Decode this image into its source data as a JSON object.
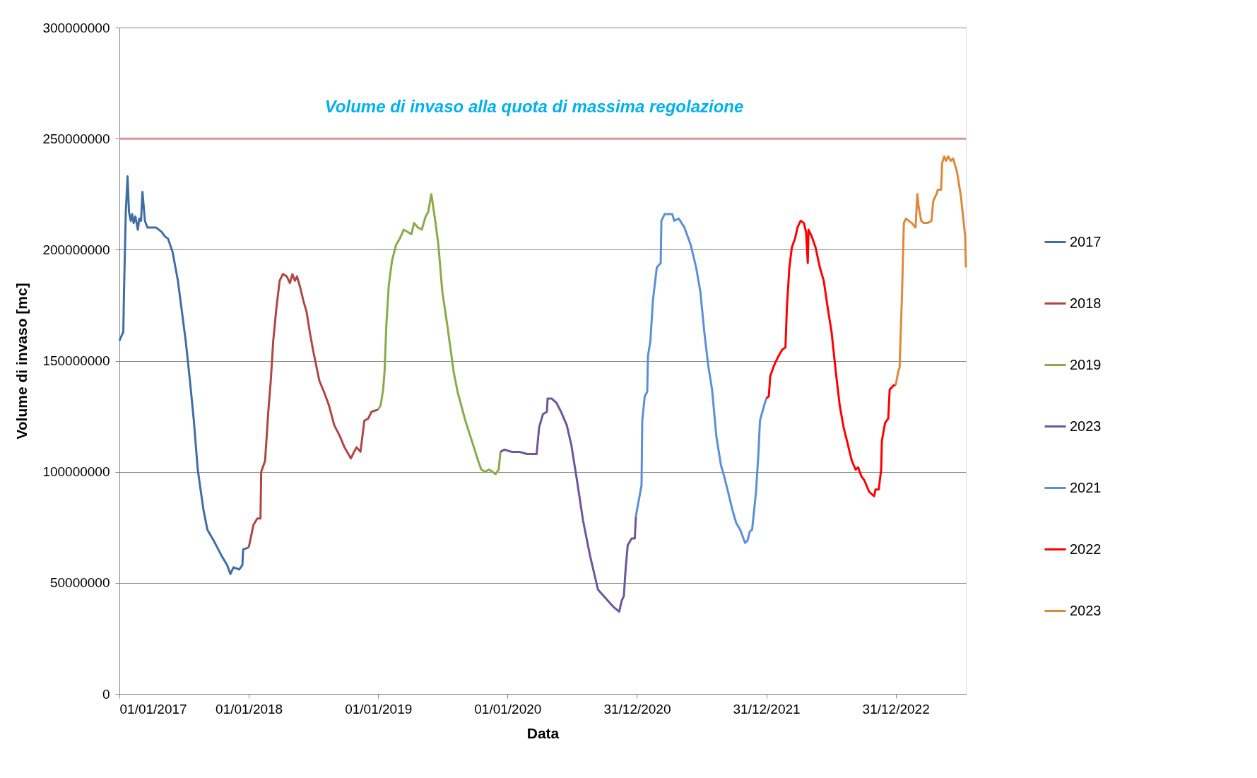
{
  "chart_data": {
    "type": "line",
    "xlabel": "Data",
    "ylabel": "Volume di invaso [mc]",
    "xlim": [
      "2017-01-01",
      "2023-07-17"
    ],
    "xticks": [
      {
        "value": "2017-01-01",
        "label": "01/01/2017"
      },
      {
        "value": "2018-01-01",
        "label": "01/01/2018"
      },
      {
        "value": "2019-01-01",
        "label": "01/01/2019"
      },
      {
        "value": "2020-01-01",
        "label": "01/01/2020"
      },
      {
        "value": "2020-12-31",
        "label": "31/12/2020"
      },
      {
        "value": "2021-12-31",
        "label": "31/12/2021"
      },
      {
        "value": "2022-12-31",
        "label": "31/12/2022"
      }
    ],
    "ylim": [
      0,
      300000000
    ],
    "yticks": [
      0,
      50000000,
      100000000,
      150000000,
      200000000,
      250000000,
      300000000
    ],
    "grid": "y",
    "legend": "right",
    "marker": "none",
    "line_style": "solid",
    "ref_lines": [
      {
        "axis": "y",
        "value": 250000000,
        "label": "Volume di invaso alla quota di massima regolazione",
        "color": "#d99694"
      }
    ],
    "series": [
      {
        "name": "2017",
        "color": "#3f6ea6",
        "x": [
          "2017-01-01",
          "2017-01-12",
          "2017-01-14",
          "2017-01-19",
          "2017-01-24",
          "2017-01-28",
          "2017-02-02",
          "2017-02-06",
          "2017-02-10",
          "2017-02-15",
          "2017-02-22",
          "2017-02-26",
          "2017-03-03",
          "2017-03-07",
          "2017-03-14",
          "2017-03-21",
          "2017-04-01",
          "2017-04-14",
          "2017-04-30",
          "2017-05-09",
          "2017-05-18",
          "2017-05-31",
          "2017-06-15",
          "2017-07-07",
          "2017-07-19",
          "2017-07-30",
          "2017-08-10",
          "2017-08-26",
          "2017-09-06",
          "2017-09-24",
          "2017-10-17",
          "2017-11-01",
          "2017-11-10",
          "2017-11-19",
          "2017-12-05",
          "2017-12-14",
          "2017-12-16",
          "2018-01-01"
        ],
        "values": [
          159000000,
          163000000,
          181000000,
          217000000,
          233000000,
          217000000,
          213000000,
          216000000,
          212000000,
          215000000,
          209000000,
          214000000,
          213000000,
          226000000,
          213000000,
          210000000,
          210000000,
          210000000,
          208000000,
          206000000,
          205000000,
          199000000,
          186000000,
          159000000,
          141000000,
          123000000,
          101000000,
          83000000,
          74000000,
          69000000,
          62000000,
          58000000,
          54000000,
          57000000,
          56000000,
          58000000,
          65000000,
          66000000
        ]
      },
      {
        "name": "2018",
        "color": "#b04643",
        "x": [
          "2018-01-01",
          "2018-01-14",
          "2018-01-25",
          "2018-02-03",
          "2018-02-05",
          "2018-02-16",
          "2018-02-25",
          "2018-03-04",
          "2018-03-11",
          "2018-03-20",
          "2018-03-29",
          "2018-04-07",
          "2018-04-18",
          "2018-04-27",
          "2018-05-04",
          "2018-05-11",
          "2018-05-17",
          "2018-05-26",
          "2018-06-04",
          "2018-06-13",
          "2018-06-22",
          "2018-07-01",
          "2018-07-10",
          "2018-07-19",
          "2018-08-01",
          "2018-08-15",
          "2018-08-30",
          "2018-09-15",
          "2018-09-28",
          "2018-10-16",
          "2018-10-25",
          "2018-11-01",
          "2018-11-12",
          "2018-11-16",
          "2018-11-23",
          "2018-12-04",
          "2018-12-13",
          "2019-01-01"
        ],
        "values": [
          66000000,
          76000000,
          79000000,
          79000000,
          100000000,
          105000000,
          127000000,
          141000000,
          159000000,
          174000000,
          186000000,
          189000000,
          188000000,
          185000000,
          189000000,
          186000000,
          188000000,
          183000000,
          177000000,
          172000000,
          163000000,
          155000000,
          148000000,
          141000000,
          136000000,
          130000000,
          121000000,
          116000000,
          111000000,
          106000000,
          109000000,
          111000000,
          109000000,
          114000000,
          123000000,
          124000000,
          127000000,
          128000000
        ]
      },
      {
        "name": "2019",
        "color": "#8aaa4a",
        "x": [
          "2019-01-01",
          "2019-01-08",
          "2019-01-15",
          "2019-01-19",
          "2019-01-24",
          "2019-01-31",
          "2019-02-09",
          "2019-02-20",
          "2019-03-03",
          "2019-03-14",
          "2019-03-25",
          "2019-04-05",
          "2019-04-12",
          "2019-04-23",
          "2019-05-04",
          "2019-05-15",
          "2019-05-22",
          "2019-05-31",
          "2019-06-11",
          "2019-06-20",
          "2019-07-01",
          "2019-07-15",
          "2019-08-02",
          "2019-08-13",
          "2019-09-04",
          "2019-09-22",
          "2019-10-10",
          "2019-10-19",
          "2019-10-30",
          "2019-11-10",
          "2019-11-28",
          "2019-12-07",
          "2019-12-12"
        ],
        "values": [
          128000000,
          130000000,
          137000000,
          145000000,
          166000000,
          184000000,
          195000000,
          202000000,
          205000000,
          209000000,
          208000000,
          207000000,
          212000000,
          210000000,
          209000000,
          215000000,
          217000000,
          225000000,
          213000000,
          202000000,
          181000000,
          166000000,
          145000000,
          136000000,
          123000000,
          114000000,
          105000000,
          101000000,
          100000000,
          101000000,
          99000000,
          101000000,
          109000000
        ]
      },
      {
        "name": "2023",
        "color": "#6f559a",
        "x": [
          "2019-12-12",
          "2019-12-23",
          "2020-01-12",
          "2020-02-03",
          "2020-02-25",
          "2020-03-23",
          "2020-03-30",
          "2020-04-10",
          "2020-04-21",
          "2020-04-23",
          "2020-05-04",
          "2020-05-18",
          "2020-05-31",
          "2020-06-16",
          "2020-06-29",
          "2020-07-15",
          "2020-08-01",
          "2020-08-21",
          "2020-09-12",
          "2020-10-04",
          "2020-10-27",
          "2020-11-11",
          "2020-11-18",
          "2020-11-24",
          "2020-11-29",
          "2020-12-05",
          "2020-12-16",
          "2020-12-25",
          "2020-12-28"
        ],
        "values": [
          109000000,
          110000000,
          109000000,
          109000000,
          108000000,
          108000000,
          120000000,
          126000000,
          127000000,
          133000000,
          133000000,
          131000000,
          127000000,
          121000000,
          112000000,
          96000000,
          78000000,
          62000000,
          47000000,
          43000000,
          39000000,
          37000000,
          42000000,
          44000000,
          56000000,
          67000000,
          70000000,
          70000000,
          80000000
        ]
      },
      {
        "name": "2021",
        "color": "#5b8fd6",
        "x": [
          "2020-12-28",
          "2021-01-13",
          "2021-01-15",
          "2021-01-22",
          "2021-01-29",
          "2021-01-31",
          "2021-02-07",
          "2021-02-14",
          "2021-02-25",
          "2021-03-08",
          "2021-03-10",
          "2021-03-19",
          "2021-04-10",
          "2021-04-15",
          "2021-04-28",
          "2021-05-14",
          "2021-06-01",
          "2021-06-16",
          "2021-06-28",
          "2021-07-09",
          "2021-07-20",
          "2021-07-31",
          "2021-08-12",
          "2021-08-18",
          "2021-08-25",
          "2021-09-03",
          "2021-09-14",
          "2021-09-26",
          "2021-10-07",
          "2021-10-18",
          "2021-11-01",
          "2021-11-08",
          "2021-11-14",
          "2021-11-21",
          "2021-12-02",
          "2021-12-09",
          "2021-12-13",
          "2021-12-25",
          "2021-12-31"
        ],
        "values": [
          80000000,
          94000000,
          123000000,
          134000000,
          136000000,
          152000000,
          159000000,
          177000000,
          192000000,
          194000000,
          213000000,
          216000000,
          216000000,
          213000000,
          214000000,
          210000000,
          202000000,
          192000000,
          181000000,
          163000000,
          148000000,
          137000000,
          116000000,
          110000000,
          103000000,
          98000000,
          91000000,
          83000000,
          77000000,
          74000000,
          68000000,
          69000000,
          73000000,
          74000000,
          91000000,
          109000000,
          123000000,
          130000000,
          133000000
        ]
      },
      {
        "name": "2022",
        "color": "#ff0000",
        "x": [
          "2021-12-31",
          "2022-01-07",
          "2022-01-11",
          "2022-01-22",
          "2022-02-03",
          "2022-02-14",
          "2022-02-23",
          "2022-02-27",
          "2022-03-06",
          "2022-03-13",
          "2022-03-22",
          "2022-03-29",
          "2022-04-07",
          "2022-04-16",
          "2022-04-22",
          "2022-04-27",
          "2022-04-29",
          "2022-05-08",
          "2022-05-19",
          "2022-05-31",
          "2022-06-11",
          "2022-06-22",
          "2022-07-03",
          "2022-07-15",
          "2022-07-26",
          "2022-08-06",
          "2022-08-17",
          "2022-08-29",
          "2022-09-09",
          "2022-09-16",
          "2022-09-25",
          "2022-10-04",
          "2022-10-17",
          "2022-10-31",
          "2022-11-04",
          "2022-11-13",
          "2022-11-20",
          "2022-11-22",
          "2022-12-01",
          "2022-12-10",
          "2022-12-14",
          "2022-12-26",
          "2022-12-31"
        ],
        "values": [
          133000000,
          134000000,
          143000000,
          148000000,
          152000000,
          155000000,
          156000000,
          174000000,
          192000000,
          201000000,
          205000000,
          210000000,
          213000000,
          212000000,
          208000000,
          194000000,
          209000000,
          206000000,
          201000000,
          192000000,
          186000000,
          174000000,
          163000000,
          145000000,
          130000000,
          120000000,
          113000000,
          105000000,
          101000000,
          102000000,
          98000000,
          96000000,
          91000000,
          89000000,
          92000000,
          92000000,
          101000000,
          114000000,
          122000000,
          124000000,
          137000000,
          139000000,
          139000000
        ]
      },
      {
        "name": "2023",
        "color": "#e0883a",
        "x": [
          "2022-12-31",
          "2023-01-07",
          "2023-01-11",
          "2023-01-18",
          "2023-01-23",
          "2023-01-29",
          "2023-02-14",
          "2023-02-25",
          "2023-03-02",
          "2023-03-06",
          "2023-03-13",
          "2023-03-20",
          "2023-03-31",
          "2023-04-11",
          "2023-04-16",
          "2023-04-25",
          "2023-04-29",
          "2023-05-08",
          "2023-05-11",
          "2023-05-17",
          "2023-05-22",
          "2023-05-28",
          "2023-06-04",
          "2023-06-11",
          "2023-06-22",
          "2023-07-03",
          "2023-07-15",
          "2023-07-17"
        ],
        "values": [
          139000000,
          145000000,
          147000000,
          181000000,
          212000000,
          214000000,
          212000000,
          210000000,
          225000000,
          219000000,
          213000000,
          212000000,
          212000000,
          213000000,
          222000000,
          225000000,
          227000000,
          227000000,
          239000000,
          242000000,
          240000000,
          242000000,
          240000000,
          241000000,
          235000000,
          224000000,
          206000000,
          192000000
        ]
      }
    ]
  }
}
